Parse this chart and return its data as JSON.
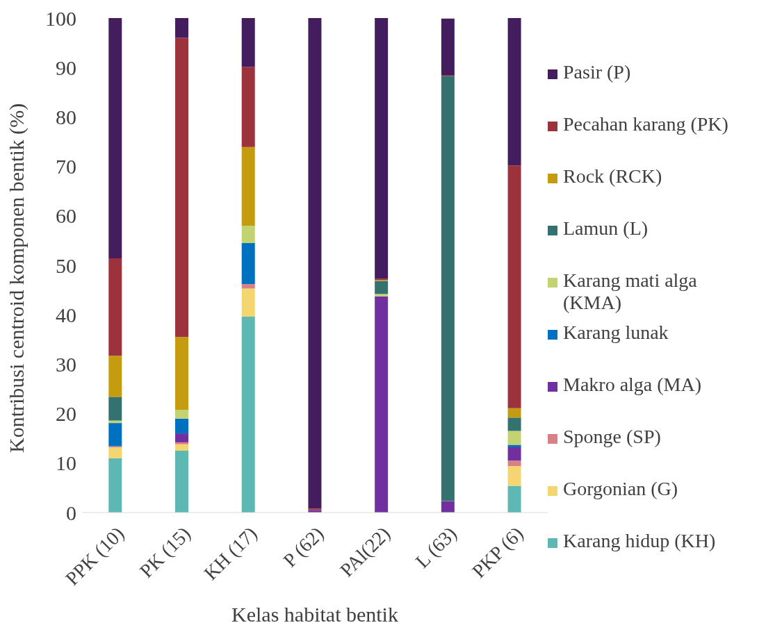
{
  "chart_data": {
    "type": "bar",
    "stacked": true,
    "xlabel": "Kelas habitat bentik",
    "ylabel": "Kontribusi centroid komponen bentik (%)",
    "categories": [
      "PPK (10)",
      "PK (15)",
      "KH (17)",
      "P (62)",
      "PAl(22)",
      "L (63)",
      "PKP (6)"
    ],
    "series": [
      {
        "name": "Karang hidup (KH)",
        "color": "#5db8b3",
        "values": [
          11.0,
          12.5,
          39.6,
          0,
          0,
          0,
          5.4
        ]
      },
      {
        "name": "Gorgonian (G)",
        "color": "#f4d56f",
        "values": [
          2.2,
          1.3,
          5.7,
          0,
          0,
          0,
          4.0
        ]
      },
      {
        "name": "Sponge (SP)",
        "color": "#d98087",
        "values": [
          0.2,
          0.4,
          0.9,
          0,
          0,
          0,
          1.1
        ]
      },
      {
        "name": "Makro alga (MA)",
        "color": "#7030a0",
        "values": [
          0,
          1.8,
          0,
          0.5,
          43.7,
          2.3,
          2.7
        ]
      },
      {
        "name": "Karang lunak",
        "color": "#0070c0",
        "values": [
          4.7,
          3.0,
          8.3,
          0,
          0,
          0,
          0.5
        ]
      },
      {
        "name": "Karang mati alga (KMA)",
        "color": "#c3d372",
        "values": [
          0.5,
          1.8,
          3.5,
          0,
          0.5,
          0,
          2.8
        ]
      },
      {
        "name": "Lamun (L)",
        "color": "#33726e",
        "values": [
          4.8,
          0,
          0,
          0,
          2.6,
          86.0,
          2.7
        ]
      },
      {
        "name": "Rock (RCK)",
        "color": "#c59b10",
        "values": [
          8.3,
          14.7,
          15.9,
          0,
          0.2,
          null,
          1.9
        ]
      },
      {
        "name": "Pecahan karang (PK)",
        "color": "#9c323c",
        "values": [
          19.7,
          60.5,
          16.2,
          0.3,
          0.3,
          0.2,
          49.1
        ]
      },
      {
        "name": "Pasir (P)",
        "color": "#441d5e",
        "values": [
          48.6,
          4.0,
          9.9,
          99.2,
          52.7,
          11.4,
          29.8
        ]
      }
    ],
    "ylim": [
      0,
      100
    ],
    "yticks": [
      0,
      10,
      20,
      30,
      40,
      50,
      60,
      70,
      80,
      90,
      100
    ],
    "grid": false,
    "legend": "right"
  }
}
